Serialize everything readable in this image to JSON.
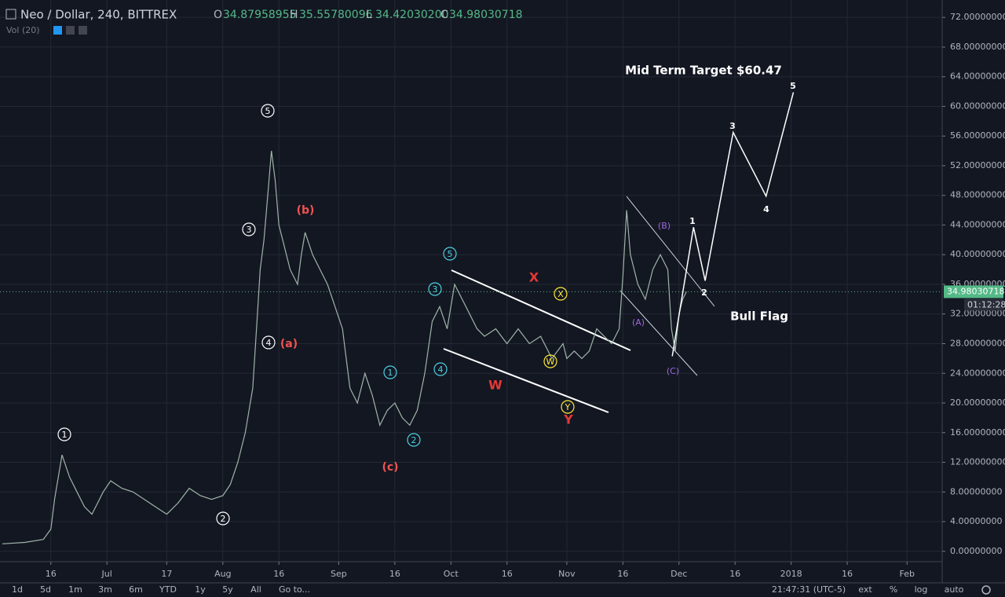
{
  "header": {
    "symbol": "Neo / Dollar, 240, BITTREX",
    "open_label": "O",
    "open": "34.87958955",
    "high_label": "H",
    "high": "35.55780096",
    "low_label": "L",
    "low": "34.42030200",
    "close_label": "C",
    "close": "34.98030718",
    "volume": "Vol (20)",
    "countdown": "01:12:28"
  },
  "toolbar": {
    "ranges": [
      "1d",
      "5d",
      "1m",
      "3m",
      "6m",
      "YTD",
      "1y",
      "5y",
      "All",
      "Go to..."
    ],
    "clock": "21:47:31 (UTC-5)",
    "options": [
      "ext",
      "%",
      "log",
      "auto"
    ]
  },
  "chart_data": {
    "type": "line",
    "xlim": [
      153.4,
      405.4
    ],
    "ylim": [
      -1.4,
      74.35
    ],
    "grid": true,
    "xticks": [
      {
        "value": 167,
        "label": "16"
      },
      {
        "value": 182,
        "label": "Jul"
      },
      {
        "value": 198,
        "label": "17"
      },
      {
        "value": 213,
        "label": "Aug"
      },
      {
        "value": 228,
        "label": "16"
      },
      {
        "value": 244,
        "label": "Sep"
      },
      {
        "value": 259,
        "label": "16"
      },
      {
        "value": 274,
        "label": "Oct"
      },
      {
        "value": 289,
        "label": "16"
      },
      {
        "value": 305,
        "label": "Nov"
      },
      {
        "value": 320,
        "label": "16"
      },
      {
        "value": 335,
        "label": "Dec"
      },
      {
        "value": 350,
        "label": "16"
      },
      {
        "value": 365,
        "label": "2018"
      },
      {
        "value": 380,
        "label": "16"
      },
      {
        "value": 396,
        "label": "Feb"
      }
    ],
    "yticks": [
      {
        "value": 0,
        "label": "0.00000000"
      },
      {
        "value": 4,
        "label": "4.00000000"
      },
      {
        "value": 8,
        "label": "8.00000000"
      },
      {
        "value": 12,
        "label": "12.00000000"
      },
      {
        "value": 16,
        "label": "16.00000000"
      },
      {
        "value": 20,
        "label": "20.00000000"
      },
      {
        "value": 24,
        "label": "24.00000000"
      },
      {
        "value": 28,
        "label": "28.00000000"
      },
      {
        "value": 32,
        "label": "32.00000000"
      },
      {
        "value": 36,
        "label": "36.00000000"
      },
      {
        "value": 40,
        "label": "40.00000000"
      },
      {
        "value": 44,
        "label": "44.00000000"
      },
      {
        "value": 48,
        "label": "48.00000000"
      },
      {
        "value": 52,
        "label": "52.00000000"
      },
      {
        "value": 56,
        "label": "56.00000000"
      },
      {
        "value": 60,
        "label": "60.00000000"
      },
      {
        "value": 64,
        "label": "64.00000000"
      },
      {
        "value": 68,
        "label": "68.00000000"
      },
      {
        "value": 72,
        "label": "72.00000000"
      }
    ],
    "price": {
      "color": "#9fb5a8",
      "x": [
        154,
        160,
        165,
        167,
        168,
        170,
        172,
        174,
        176,
        178,
        181,
        183,
        186,
        189,
        192,
        195,
        198,
        201,
        204,
        207,
        210,
        213,
        215,
        217,
        219,
        221,
        222,
        223,
        224,
        225,
        226,
        227,
        228,
        229,
        231,
        233,
        234,
        235,
        237,
        239,
        241,
        243,
        245,
        247,
        249,
        251,
        253,
        255,
        257,
        259,
        261,
        263,
        265,
        267,
        269,
        271,
        273,
        275,
        277,
        279,
        281,
        283,
        286,
        289,
        292,
        295,
        298,
        301,
        304,
        305,
        307,
        309,
        311,
        313,
        315,
        317,
        319,
        320,
        321,
        322,
        324,
        326,
        328,
        330,
        332,
        333,
        334,
        335,
        336,
        337
      ],
      "values": [
        1.0,
        1.2,
        1.6,
        3,
        7,
        13,
        10,
        8,
        6,
        5,
        8,
        9.5,
        8.5,
        8,
        7,
        6,
        5,
        6.5,
        8.5,
        7.5,
        7,
        7.5,
        9,
        12,
        16,
        22,
        30,
        38,
        42,
        48,
        54,
        50,
        44,
        42,
        38,
        36,
        40,
        43,
        40,
        38,
        36,
        33,
        30,
        22,
        20,
        24,
        21,
        17,
        19,
        20,
        18,
        17,
        19,
        24,
        31,
        33,
        30,
        36,
        34,
        32,
        30,
        29,
        30,
        28,
        30,
        28,
        29,
        26,
        28,
        26,
        27,
        26,
        27,
        30,
        29,
        28,
        30,
        37,
        46,
        40,
        36,
        34,
        38,
        40,
        38,
        30,
        27,
        32,
        34,
        35
      ]
    },
    "projection": {
      "color": "#ffffff",
      "x": [
        333.2,
        338.9,
        342.0,
        349.5,
        358.3,
        365.6
      ],
      "values": [
        26.3,
        43.7,
        36.5,
        56.5,
        47.9,
        61.9
      ]
    },
    "annotations": [
      {
        "text": "1",
        "style": "circle-white"
      },
      {
        "text": "2",
        "style": "circle-white"
      },
      {
        "text": "3",
        "style": "circle-white"
      },
      {
        "text": "4",
        "style": "circle-white"
      },
      {
        "text": "5",
        "style": "circle-white"
      },
      {
        "text": "(a)",
        "style": "red"
      },
      {
        "text": "(b)",
        "style": "red"
      },
      {
        "text": "(c)",
        "style": "red"
      },
      {
        "text": "1",
        "style": "circle-cyan"
      },
      {
        "text": "2",
        "style": "circle-cyan"
      },
      {
        "text": "3",
        "style": "circle-cyan"
      },
      {
        "text": "4",
        "style": "circle-cyan"
      },
      {
        "text": "5",
        "style": "circle-cyan"
      },
      {
        "text": "X",
        "style": "circle-yellow"
      },
      {
        "text": "W",
        "style": "circle-yellow"
      },
      {
        "text": "Y",
        "style": "circle-yellow"
      },
      {
        "text": "X",
        "style": "red-bold"
      },
      {
        "text": "W",
        "style": "red-bold"
      },
      {
        "text": "Y",
        "style": "red-bold"
      },
      {
        "text": "(A)",
        "style": "purple"
      },
      {
        "text": "(B)",
        "style": "purple"
      },
      {
        "text": "(C)",
        "style": "purple"
      },
      {
        "text": "1",
        "style": "white"
      },
      {
        "text": "2",
        "style": "white"
      },
      {
        "text": "3",
        "style": "white"
      },
      {
        "text": "4",
        "style": "white"
      },
      {
        "text": "5",
        "style": "white"
      },
      {
        "text": "Mid Term Target $60.47",
        "style": "white-big"
      },
      {
        "text": "Bull Flag",
        "style": "white-big"
      }
    ]
  }
}
